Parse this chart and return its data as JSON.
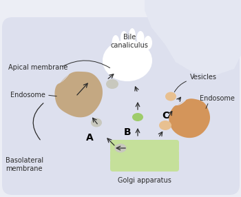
{
  "bg_color": "#eceef5",
  "cell_main_color": "#dde0ee",
  "cell_right_color": "#e4e7f2",
  "apical_white": "#ffffff",
  "golgi_color": "#c5e09a",
  "golgi_outline": "#b8d88a",
  "endosome_left_color": "#c4a882",
  "endosome_right_color": "#d4955a",
  "vesicle_gray_color": "#c8c8be",
  "vesicle_green_color": "#9ecc6a",
  "vesicle_peach_color": "#e8c090",
  "arrow_color": "#2a2a2a",
  "label_color": "#2a2a2a",
  "bold_color": "#000000",
  "labels": {
    "apical": "Apical membrane",
    "bile": "Bile\ncanaliculus",
    "endosome_left": "Endosome",
    "basolateral": "Basolateral\nmembrane",
    "A": "A",
    "B": "B",
    "C": "C",
    "golgi": "Golgi apparatus",
    "vesicles": "Vesicles",
    "endosome_right": "Endosome"
  }
}
